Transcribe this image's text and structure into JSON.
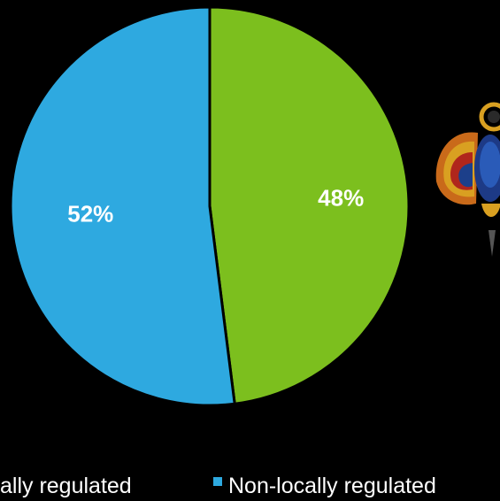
{
  "chart_data": {
    "type": "pie",
    "slices": [
      {
        "label": "Locally regulated",
        "value": 48,
        "color": "#7CBF1E",
        "display": "48%"
      },
      {
        "label": "Non-locally regulated",
        "value": 52,
        "color": "#2EA9E0",
        "display": "52%"
      }
    ],
    "legend": {
      "placement": "bottom",
      "items": [
        "Locally regulated",
        "Non-locally regulated"
      ]
    },
    "legend_visible_text": [
      "ally regulated",
      "Non-locally regulated"
    ]
  },
  "decoration": {
    "icon": "winged-scarab-emblem-icon"
  }
}
